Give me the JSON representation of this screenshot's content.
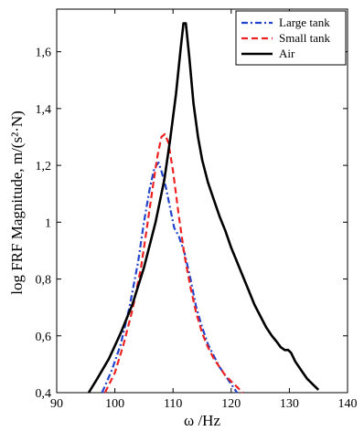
{
  "chart_data": {
    "type": "line",
    "xlabel": "ω /Hz",
    "ylabel": "log FRF Magnitude, m/(s²·N)",
    "xlim": [
      90,
      140
    ],
    "ylim": [
      0.4,
      1.75
    ],
    "x_ticks": [
      90,
      100,
      110,
      120,
      130,
      140
    ],
    "x_tick_labels": [
      "90",
      "100",
      "110",
      "120",
      "130",
      "140"
    ],
    "y_ticks": [
      0.4,
      0.6,
      0.8,
      1.0,
      1.2,
      1.4,
      1.6
    ],
    "y_tick_labels": [
      "0,4",
      "0,6",
      "0,8",
      "1",
      "1,2",
      "1,4",
      "1,6"
    ],
    "grid": false,
    "legend_position": "top-right",
    "series": [
      {
        "name": "Large tank",
        "color": "#2244cc",
        "dash": "dash-dot",
        "x": [
          97.8,
          99.5,
          101.0,
          102.5,
          104.0,
          105.0,
          106.0,
          106.8,
          107.5,
          108.0,
          108.8,
          109.5,
          110.2,
          111.0,
          112.0,
          113.0,
          114.0,
          115.0,
          116.0,
          117.0,
          118.0,
          119.0,
          120.0,
          121.0
        ],
        "y": [
          0.4,
          0.48,
          0.57,
          0.7,
          0.86,
          1.0,
          1.12,
          1.19,
          1.21,
          1.18,
          1.12,
          1.05,
          0.98,
          0.95,
          0.89,
          0.8,
          0.7,
          0.63,
          0.57,
          0.53,
          0.49,
          0.46,
          0.43,
          0.4
        ]
      },
      {
        "name": "Small tank",
        "color": "#ee2222",
        "dash": "dashed",
        "x": [
          98.3,
          100.0,
          101.5,
          103.0,
          104.5,
          105.5,
          106.5,
          107.3,
          108.0,
          108.6,
          109.2,
          110.0,
          111.0,
          112.0,
          113.0,
          114.0,
          115.0,
          116.0,
          117.0,
          118.0,
          119.0,
          120.0,
          121.0,
          122.0
        ],
        "y": [
          0.4,
          0.47,
          0.57,
          0.69,
          0.84,
          0.98,
          1.12,
          1.23,
          1.3,
          1.31,
          1.28,
          1.18,
          1.02,
          0.88,
          0.77,
          0.68,
          0.61,
          0.56,
          0.52,
          0.49,
          0.46,
          0.44,
          0.42,
          0.4
        ]
      },
      {
        "name": "Air",
        "color": "#000000",
        "dash": "solid",
        "x": [
          95.5,
          97.0,
          99.0,
          101.0,
          103.0,
          105.0,
          107.0,
          108.5,
          109.5,
          110.5,
          111.3,
          111.8,
          112.2,
          112.8,
          113.5,
          114.3,
          115.0,
          116.0,
          117.0,
          118.0,
          119.0,
          120.0,
          121.0,
          122.0,
          123.0,
          124.0,
          125.0,
          126.0,
          127.0,
          127.8,
          128.5,
          129.2,
          129.8,
          130.3,
          131.0,
          132.0,
          133.0,
          134.0,
          135.0
        ],
        "y": [
          0.4,
          0.45,
          0.52,
          0.61,
          0.71,
          0.84,
          1.0,
          1.15,
          1.29,
          1.45,
          1.61,
          1.7,
          1.7,
          1.58,
          1.42,
          1.3,
          1.22,
          1.14,
          1.08,
          1.02,
          0.97,
          0.91,
          0.86,
          0.81,
          0.76,
          0.71,
          0.67,
          0.63,
          0.6,
          0.58,
          0.56,
          0.55,
          0.55,
          0.54,
          0.51,
          0.48,
          0.45,
          0.43,
          0.41
        ]
      }
    ]
  }
}
